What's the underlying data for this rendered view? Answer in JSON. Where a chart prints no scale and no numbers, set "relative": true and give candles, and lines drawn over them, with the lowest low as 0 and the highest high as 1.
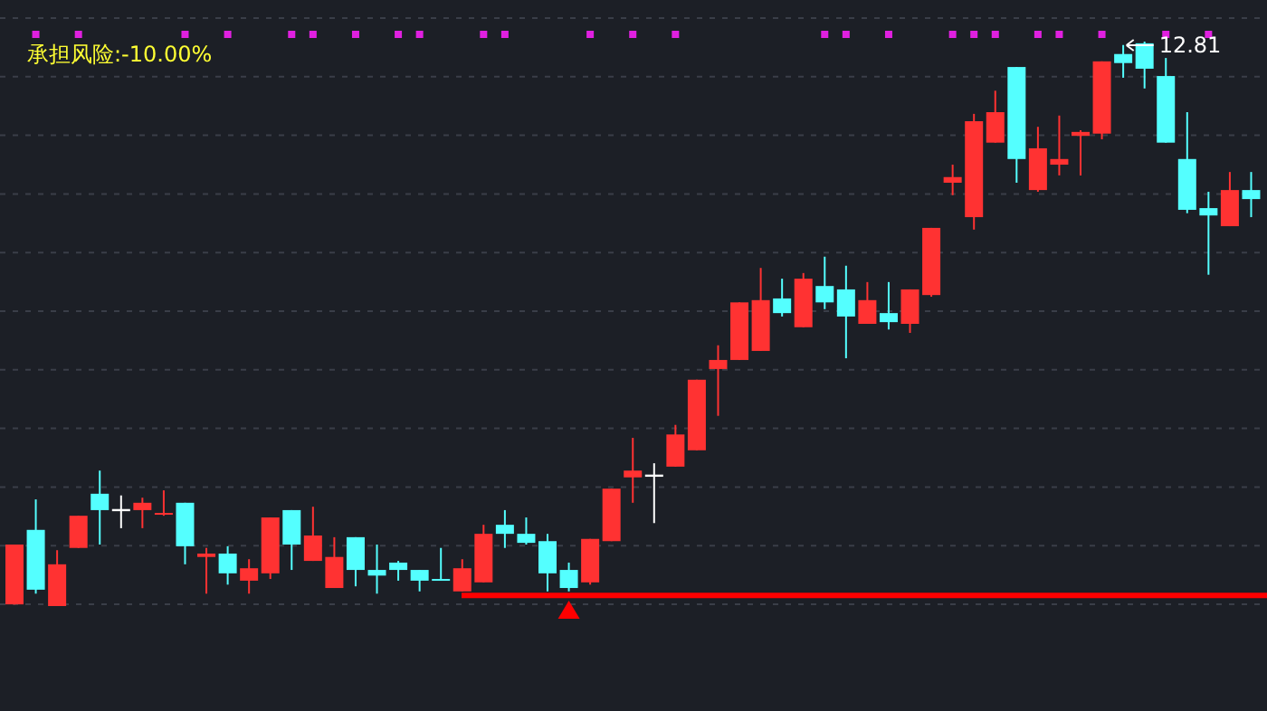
{
  "chart_data": {
    "type": "candlestick",
    "relative": true,
    "grid": "y",
    "annotations": [
      "承担风险:-10.00%",
      "12.81"
    ],
    "ref_lines": [
      {
        "axis": "y",
        "value": 0.019,
        "color": "#ff0000"
      }
    ],
    "categories": [
      null,
      null,
      null,
      null,
      null,
      null,
      null,
      null,
      null,
      null,
      null,
      null,
      null,
      null,
      null,
      null,
      null,
      null,
      null,
      null,
      null,
      null,
      null,
      null,
      null,
      null,
      null,
      null,
      null,
      null,
      null,
      null,
      null,
      null,
      null,
      null,
      null,
      null,
      null,
      null,
      null,
      null,
      null,
      null,
      null,
      null,
      null,
      null,
      null,
      null,
      null,
      null,
      null,
      null,
      null,
      null,
      null,
      null,
      null
    ],
    "ohlc": [
      [
        0.003,
        0.109,
        0.003,
        0.109
      ],
      [
        0.135,
        0.189,
        0.022,
        0.029
      ],
      [
        0,
        0.099,
        0,
        0.074
      ],
      [
        0.103,
        0.16,
        0.103,
        0.16
      ],
      [
        0.199,
        0.24,
        0.109,
        0.17
      ],
      [
        0.17,
        0.196,
        0.138,
        0.17
      ],
      [
        0.17,
        0.192,
        0.138,
        0.183
      ],
      [
        0.162,
        0.205,
        0.16,
        0.165
      ],
      [
        0.183,
        0.183,
        0.074,
        0.106
      ],
      [
        0.087,
        0.103,
        0.022,
        0.093
      ],
      [
        0.093,
        0.106,
        0.038,
        0.058
      ],
      [
        0.045,
        0.083,
        0.022,
        0.067
      ],
      [
        0.058,
        0.157,
        0.048,
        0.157
      ],
      [
        0.17,
        0.17,
        0.064,
        0.109
      ],
      [
        0.08,
        0.176,
        0.08,
        0.125
      ],
      [
        0.032,
        0.122,
        0.032,
        0.087
      ],
      [
        0.122,
        0.122,
        0.035,
        0.064
      ],
      [
        0.064,
        0.109,
        0.022,
        0.054
      ],
      [
        0.077,
        0.08,
        0.045,
        0.064
      ],
      [
        0.064,
        0.064,
        0.026,
        0.045
      ],
      [
        0.048,
        0.103,
        0.045,
        0.046
      ],
      [
        0.026,
        0.083,
        0.026,
        0.067
      ],
      [
        0.042,
        0.144,
        0.042,
        0.128
      ],
      [
        0.144,
        0.17,
        0.103,
        0.128
      ],
      [
        0.128,
        0.157,
        0.109,
        0.112
      ],
      [
        0.115,
        0.128,
        0.026,
        0.058
      ],
      [
        0.064,
        0.077,
        0.026,
        0.032
      ],
      [
        0.042,
        0.119,
        0.038,
        0.119
      ],
      [
        0.115,
        0.208,
        0.115,
        0.208
      ],
      [
        0.228,
        0.298,
        0.183,
        0.24
      ],
      [
        0.231,
        0.253,
        0.147,
        0.231
      ],
      [
        0.247,
        0.321,
        0.247,
        0.304
      ],
      [
        0.276,
        0.401,
        0.276,
        0.401
      ],
      [
        0.42,
        0.462,
        0.337,
        0.436
      ],
      [
        0.436,
        0.538,
        0.436,
        0.538
      ],
      [
        0.452,
        0.599,
        0.452,
        0.542
      ],
      [
        0.545,
        0.58,
        0.513,
        0.519
      ],
      [
        0.494,
        0.59,
        0.494,
        0.58
      ],
      [
        0.567,
        0.619,
        0.526,
        0.538
      ],
      [
        0.561,
        0.603,
        0.439,
        0.513
      ],
      [
        0.5,
        0.574,
        0.5,
        0.542
      ],
      [
        0.519,
        0.574,
        0.49,
        0.503
      ],
      [
        0.5,
        0.561,
        0.484,
        0.561
      ],
      [
        0.551,
        0.67,
        0.548,
        0.67
      ],
      [
        0.75,
        0.782,
        0.728,
        0.76
      ],
      [
        0.689,
        0.872,
        0.667,
        0.859
      ],
      [
        0.821,
        0.913,
        0.821,
        0.875
      ],
      [
        0.955,
        0.955,
        0.75,
        0.792
      ],
      [
        0.737,
        0.849,
        0.734,
        0.811
      ],
      [
        0.782,
        0.869,
        0.763,
        0.792
      ],
      [
        0.833,
        0.843,
        0.763,
        0.84
      ],
      [
        0.837,
        0.965,
        0.827,
        0.965
      ],
      [
        0.978,
        0.994,
        0.936,
        0.962
      ],
      [
        0.997,
        1,
        0.917,
        0.952
      ],
      [
        0.939,
        0.971,
        0.821,
        0.821
      ],
      [
        0.792,
        0.875,
        0.696,
        0.702
      ],
      [
        0.705,
        0.734,
        0.587,
        0.692
      ],
      [
        0.673,
        0.769,
        0.673,
        0.737
      ],
      [
        0.737,
        0.769,
        0.689,
        0.721
      ]
    ],
    "colors": [
      "#ff3232",
      "#54ffff",
      "#ff3232",
      "#ff3232",
      "#54ffff",
      "#ffffff",
      "#ff3232",
      "#ff3232",
      "#54ffff",
      "#ff3232",
      "#54ffff",
      "#ff3232",
      "#ff3232",
      "#54ffff",
      "#ff3232",
      "#ff3232",
      "#54ffff",
      "#54ffff",
      "#54ffff",
      "#54ffff",
      "#54ffff",
      "#ff3232",
      "#ff3232",
      "#54ffff",
      "#54ffff",
      "#54ffff",
      "#54ffff",
      "#ff3232",
      "#ff3232",
      "#ff3232",
      "#ffffff",
      "#ff3232",
      "#ff3232",
      "#ff3232",
      "#ff3232",
      "#ff3232",
      "#54ffff",
      "#ff3232",
      "#54ffff",
      "#54ffff",
      "#ff3232",
      "#54ffff",
      "#ff3232",
      "#ff3232",
      "#ff3232",
      "#ff3232",
      "#ff3232",
      "#54ffff",
      "#ff3232",
      "#ff3232",
      "#ff3232",
      "#ff3232",
      "#54ffff",
      "#54ffff",
      "#54ffff",
      "#54ffff",
      "#54ffff",
      "#ff3232",
      "#54ffff"
    ]
  }
}
